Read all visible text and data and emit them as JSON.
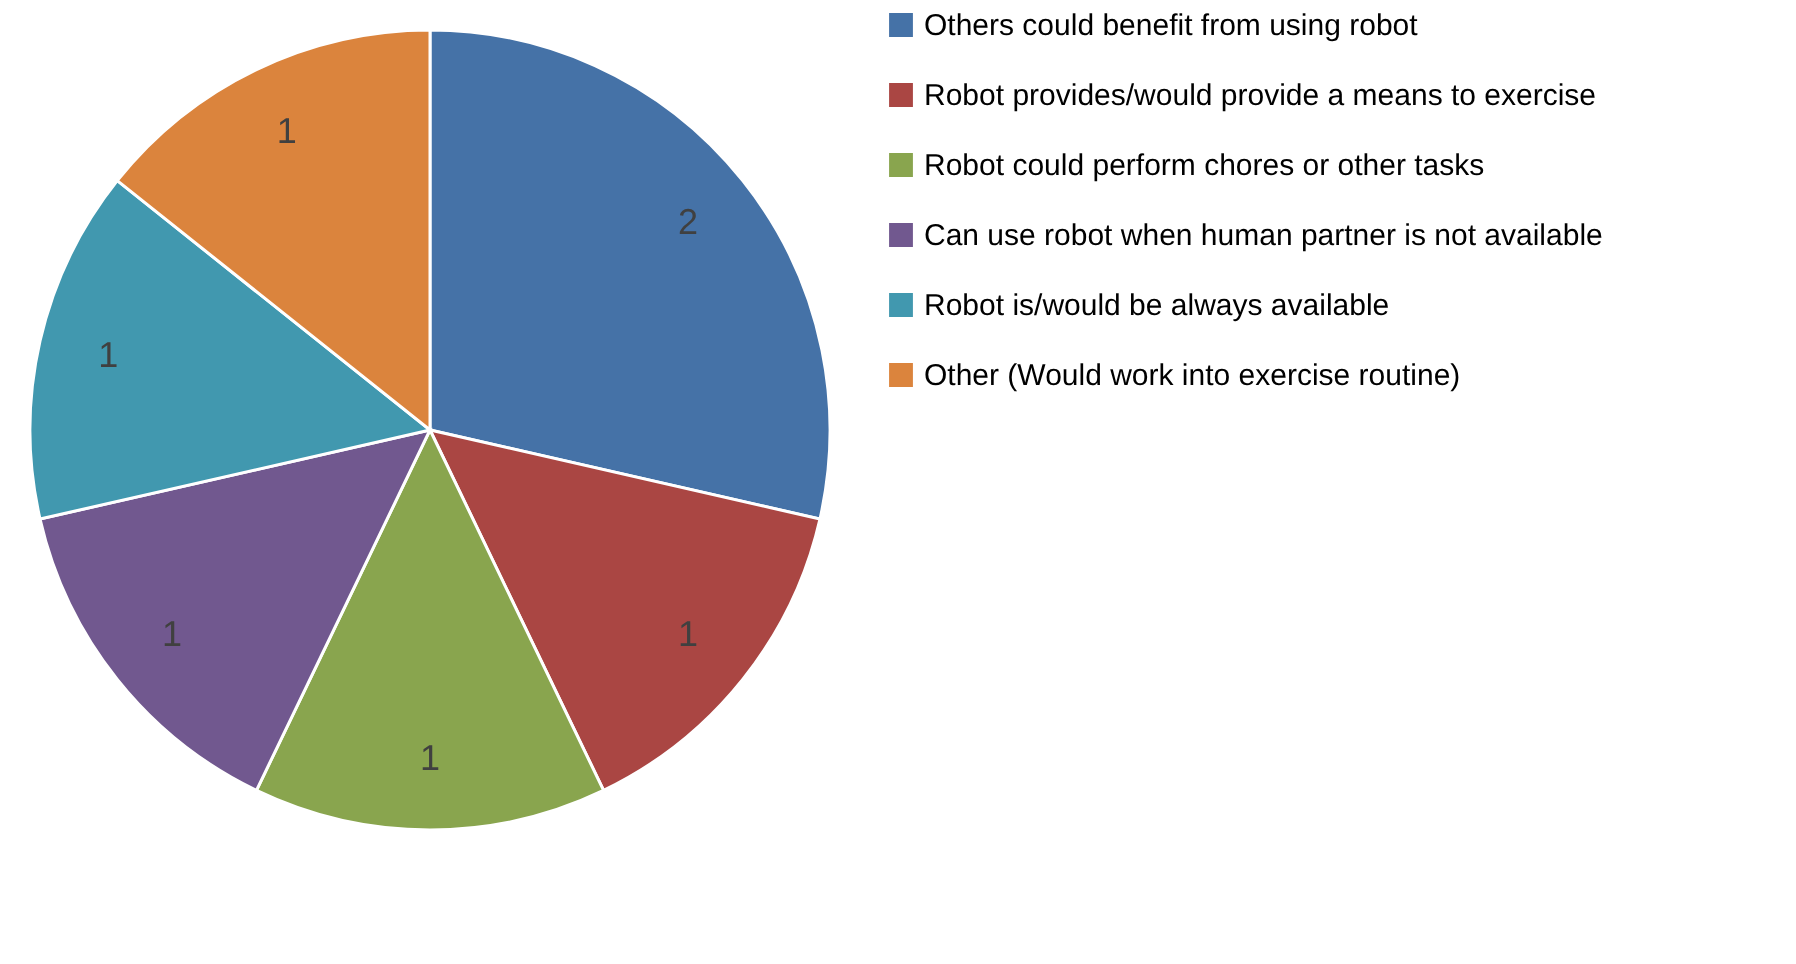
{
  "chart_data": {
    "type": "pie",
    "categories": [
      "Others could benefit from using robot",
      "Robot provides/would provide a means to exercise",
      "Robot could perform chores or other tasks",
      "Can use robot when human partner is not available",
      "Robot is/would be always available",
      "Other (Would work into exercise routine)"
    ],
    "values": [
      2,
      1,
      1,
      1,
      1,
      1
    ],
    "colors": [
      "#4572a7",
      "#aa4643",
      "#89a54e",
      "#71588f",
      "#4198af",
      "#db843d"
    ],
    "data_labels": true,
    "legend": "right"
  }
}
